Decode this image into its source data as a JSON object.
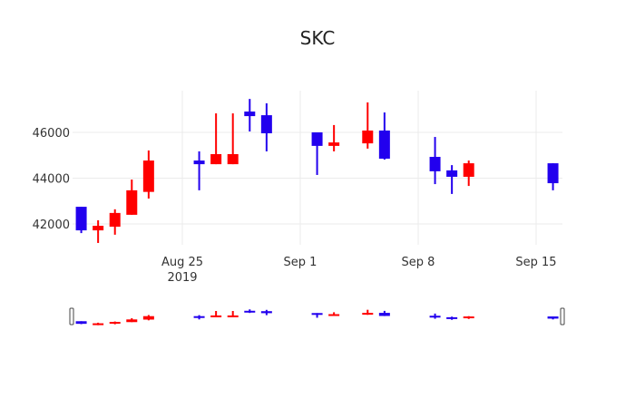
{
  "chart_data": {
    "type": "candlestick",
    "title": "SKC",
    "xlabel": "",
    "ylabel": "",
    "ylim": [
      40900,
      47700
    ],
    "yticks": [
      42000,
      44000,
      46000
    ],
    "ytick_labels": [
      "42000",
      "44000",
      "46000"
    ],
    "xticks": [
      "2019-08-25",
      "2019-09-01",
      "2019-09-08",
      "2019-09-15"
    ],
    "xtick_labels": [
      "Aug 25\n2019",
      "Sep 1",
      "Sep 8",
      "Sep 15"
    ],
    "grid": true,
    "rangeslider": true,
    "increasing_color": "#ff0000",
    "decreasing_color": "#2200ee",
    "series": [
      {
        "date": "2019-08-19",
        "open": 42750,
        "high": 42750,
        "low": 41600,
        "close": 41720
      },
      {
        "date": "2019-08-20",
        "open": 41720,
        "high": 42160,
        "low": 41170,
        "close": 41920
      },
      {
        "date": "2019-08-21",
        "open": 41880,
        "high": 42640,
        "low": 41530,
        "close": 42480
      },
      {
        "date": "2019-08-22",
        "open": 42400,
        "high": 43940,
        "low": 42400,
        "close": 43470
      },
      {
        "date": "2019-08-23",
        "open": 43400,
        "high": 45210,
        "low": 43110,
        "close": 44770
      },
      {
        "date": "2019-08-26",
        "open": 44770,
        "high": 45170,
        "low": 43470,
        "close": 44610
      },
      {
        "date": "2019-08-27",
        "open": 44610,
        "high": 46830,
        "low": 44610,
        "close": 45050
      },
      {
        "date": "2019-08-28",
        "open": 44610,
        "high": 46830,
        "low": 44610,
        "close": 45050
      },
      {
        "date": "2019-08-29",
        "open": 46910,
        "high": 47460,
        "low": 46040,
        "close": 46710
      },
      {
        "date": "2019-08-30",
        "open": 46750,
        "high": 47270,
        "low": 45170,
        "close": 45960
      },
      {
        "date": "2019-09-02",
        "open": 46000,
        "high": 46000,
        "low": 44140,
        "close": 45410
      },
      {
        "date": "2019-09-03",
        "open": 45410,
        "high": 46320,
        "low": 45170,
        "close": 45560
      },
      {
        "date": "2019-09-05",
        "open": 45520,
        "high": 47310,
        "low": 45290,
        "close": 46080
      },
      {
        "date": "2019-09-06",
        "open": 46080,
        "high": 46870,
        "low": 44810,
        "close": 44850
      },
      {
        "date": "2019-09-09",
        "open": 44930,
        "high": 45800,
        "low": 43740,
        "close": 44300
      },
      {
        "date": "2019-09-10",
        "open": 44340,
        "high": 44570,
        "low": 43310,
        "close": 44060
      },
      {
        "date": "2019-09-11",
        "open": 44060,
        "high": 44770,
        "low": 43660,
        "close": 44650
      },
      {
        "date": "2019-09-16",
        "open": 44650,
        "high": 44650,
        "low": 43470,
        "close": 43780
      }
    ]
  }
}
